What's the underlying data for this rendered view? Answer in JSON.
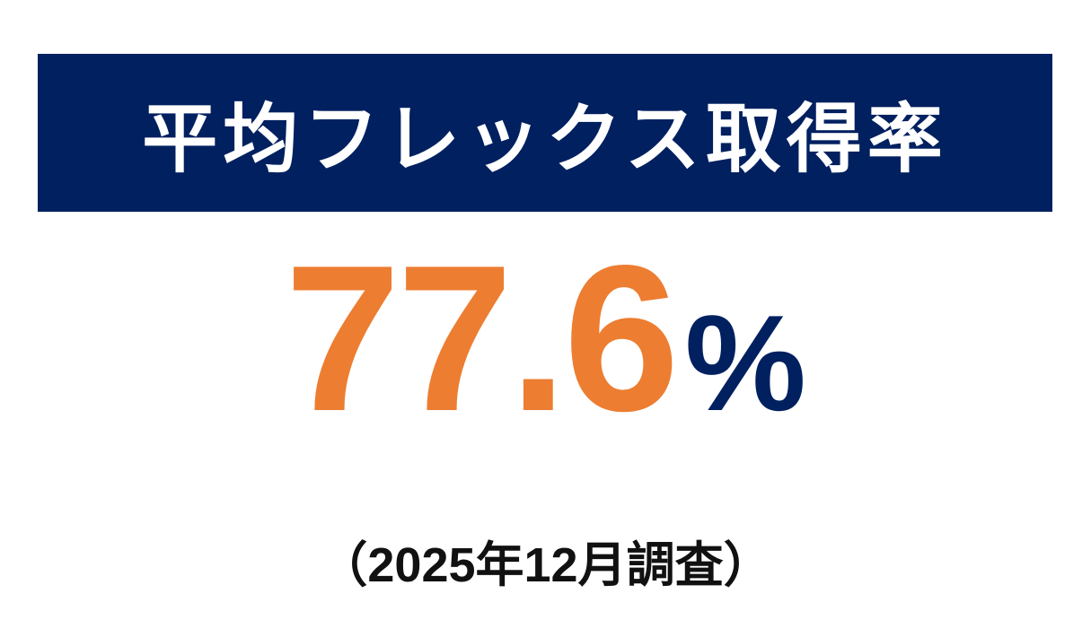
{
  "title": "平均フレックス取得率",
  "stat": {
    "value": "77.6",
    "unit": "%"
  },
  "note": "（2025年12月調査）",
  "colors": {
    "banner": "#002060",
    "value": "#ED7D31",
    "unit": "#002060",
    "title_text": "#FFFFFF"
  }
}
